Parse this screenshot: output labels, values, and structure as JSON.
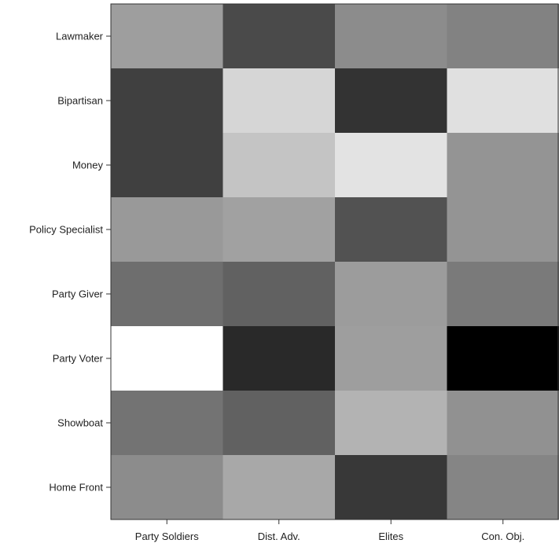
{
  "chart_data": {
    "type": "heatmap",
    "title": "",
    "xlabel": "",
    "ylabel": "",
    "x_categories": [
      "Party Soldiers",
      "Dist. Adv.",
      "Elites",
      "Con. Obj."
    ],
    "y_categories": [
      "Lawmaker",
      "Bipartisan",
      "Money",
      "Policy Specialist",
      "Party Giver",
      "Party Voter",
      "Showboat",
      "Home Front"
    ],
    "value_scale": "grayscale, 0 = black, 1 = white",
    "values": [
      [
        0.62,
        0.29,
        0.55,
        0.51
      ],
      [
        0.25,
        0.84,
        0.2,
        0.88
      ],
      [
        0.25,
        0.77,
        0.89,
        0.58
      ],
      [
        0.6,
        0.63,
        0.32,
        0.58
      ],
      [
        0.43,
        0.38,
        0.61,
        0.48
      ],
      [
        1.0,
        0.16,
        0.62,
        0.0
      ],
      [
        0.45,
        0.38,
        0.7,
        0.57
      ],
      [
        0.55,
        0.66,
        0.22,
        0.52
      ]
    ],
    "grid": false,
    "legend": "none"
  }
}
